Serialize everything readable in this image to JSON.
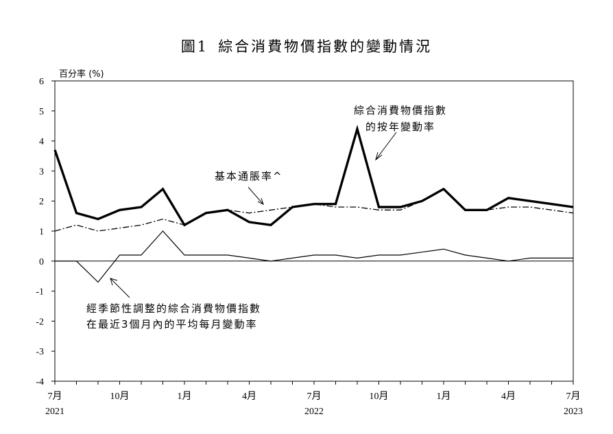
{
  "title": {
    "number": "圖1",
    "text": "綜合消費物價指數的變動情況"
  },
  "chart_data": {
    "type": "line",
    "ylabel": "百分率 (%)",
    "ylim": [
      -4,
      6
    ],
    "yticks": [
      "6",
      "5",
      "4",
      "3",
      "2",
      "1",
      "0",
      "-1",
      "-2",
      "-3",
      "-4"
    ],
    "ytick_values": [
      6,
      5,
      4,
      3,
      2,
      1,
      0,
      -1,
      -2,
      -3,
      -4
    ],
    "x": [
      "2021-07",
      "2021-08",
      "2021-09",
      "2021-10",
      "2021-11",
      "2021-12",
      "2022-01",
      "2022-02",
      "2022-03",
      "2022-04",
      "2022-05",
      "2022-06",
      "2022-07",
      "2022-08",
      "2022-09",
      "2022-10",
      "2022-11",
      "2022-12",
      "2023-01",
      "2023-02",
      "2023-03",
      "2023-04",
      "2023-05",
      "2023-06",
      "2023-07"
    ],
    "xticks": [
      {
        "month": "7月",
        "year": "2021",
        "index": 0
      },
      {
        "month": "10月",
        "year": "",
        "index": 3
      },
      {
        "month": "1月",
        "year": "",
        "index": 6
      },
      {
        "month": "4月",
        "year": "",
        "index": 9
      },
      {
        "month": "7月",
        "year": "2022",
        "index": 12
      },
      {
        "month": "10月",
        "year": "",
        "index": 15
      },
      {
        "month": "1月",
        "year": "",
        "index": 18
      },
      {
        "month": "4月",
        "year": "",
        "index": 21
      },
      {
        "month": "7月",
        "year": "2023",
        "index": 24
      }
    ],
    "series": [
      {
        "name": "綜合消費物價指數的按年變動率",
        "style": "thick",
        "values": [
          3.7,
          1.6,
          1.4,
          1.7,
          1.8,
          2.4,
          1.2,
          1.6,
          1.7,
          1.3,
          1.2,
          1.8,
          1.9,
          1.9,
          4.4,
          1.8,
          1.8,
          2.0,
          2.4,
          1.7,
          1.7,
          2.1,
          2.0,
          1.9,
          1.8
        ]
      },
      {
        "name": "基本通脹率^",
        "style": "dash-dot",
        "values": [
          1.0,
          1.2,
          1.0,
          1.1,
          1.2,
          1.4,
          1.2,
          1.6,
          1.7,
          1.6,
          1.7,
          1.8,
          1.9,
          1.8,
          1.8,
          1.7,
          1.7,
          2.0,
          2.4,
          1.7,
          1.7,
          1.8,
          1.8,
          1.7,
          1.6
        ]
      },
      {
        "name": "經季節性調整的綜合消費物價指數在最近3個月內的平均每月變動率",
        "style": "thin",
        "values": [
          0.0,
          0.0,
          -0.7,
          0.2,
          0.2,
          1.0,
          0.2,
          0.2,
          0.2,
          0.1,
          0.0,
          0.1,
          0.2,
          0.2,
          0.1,
          0.2,
          0.2,
          0.3,
          0.4,
          0.2,
          0.1,
          0.0,
          0.1,
          0.1,
          0.1
        ]
      }
    ],
    "annotations": {
      "yoy_line1": "綜合消費物價指數",
      "yoy_line2": "的按年變動率",
      "underlying": "基本通脹率^",
      "sa_line1": "經季節性調整的綜合消費物價指數",
      "sa_line2": "在最近3個月內的平均每月變動率"
    },
    "grid": false,
    "legend": "none"
  }
}
